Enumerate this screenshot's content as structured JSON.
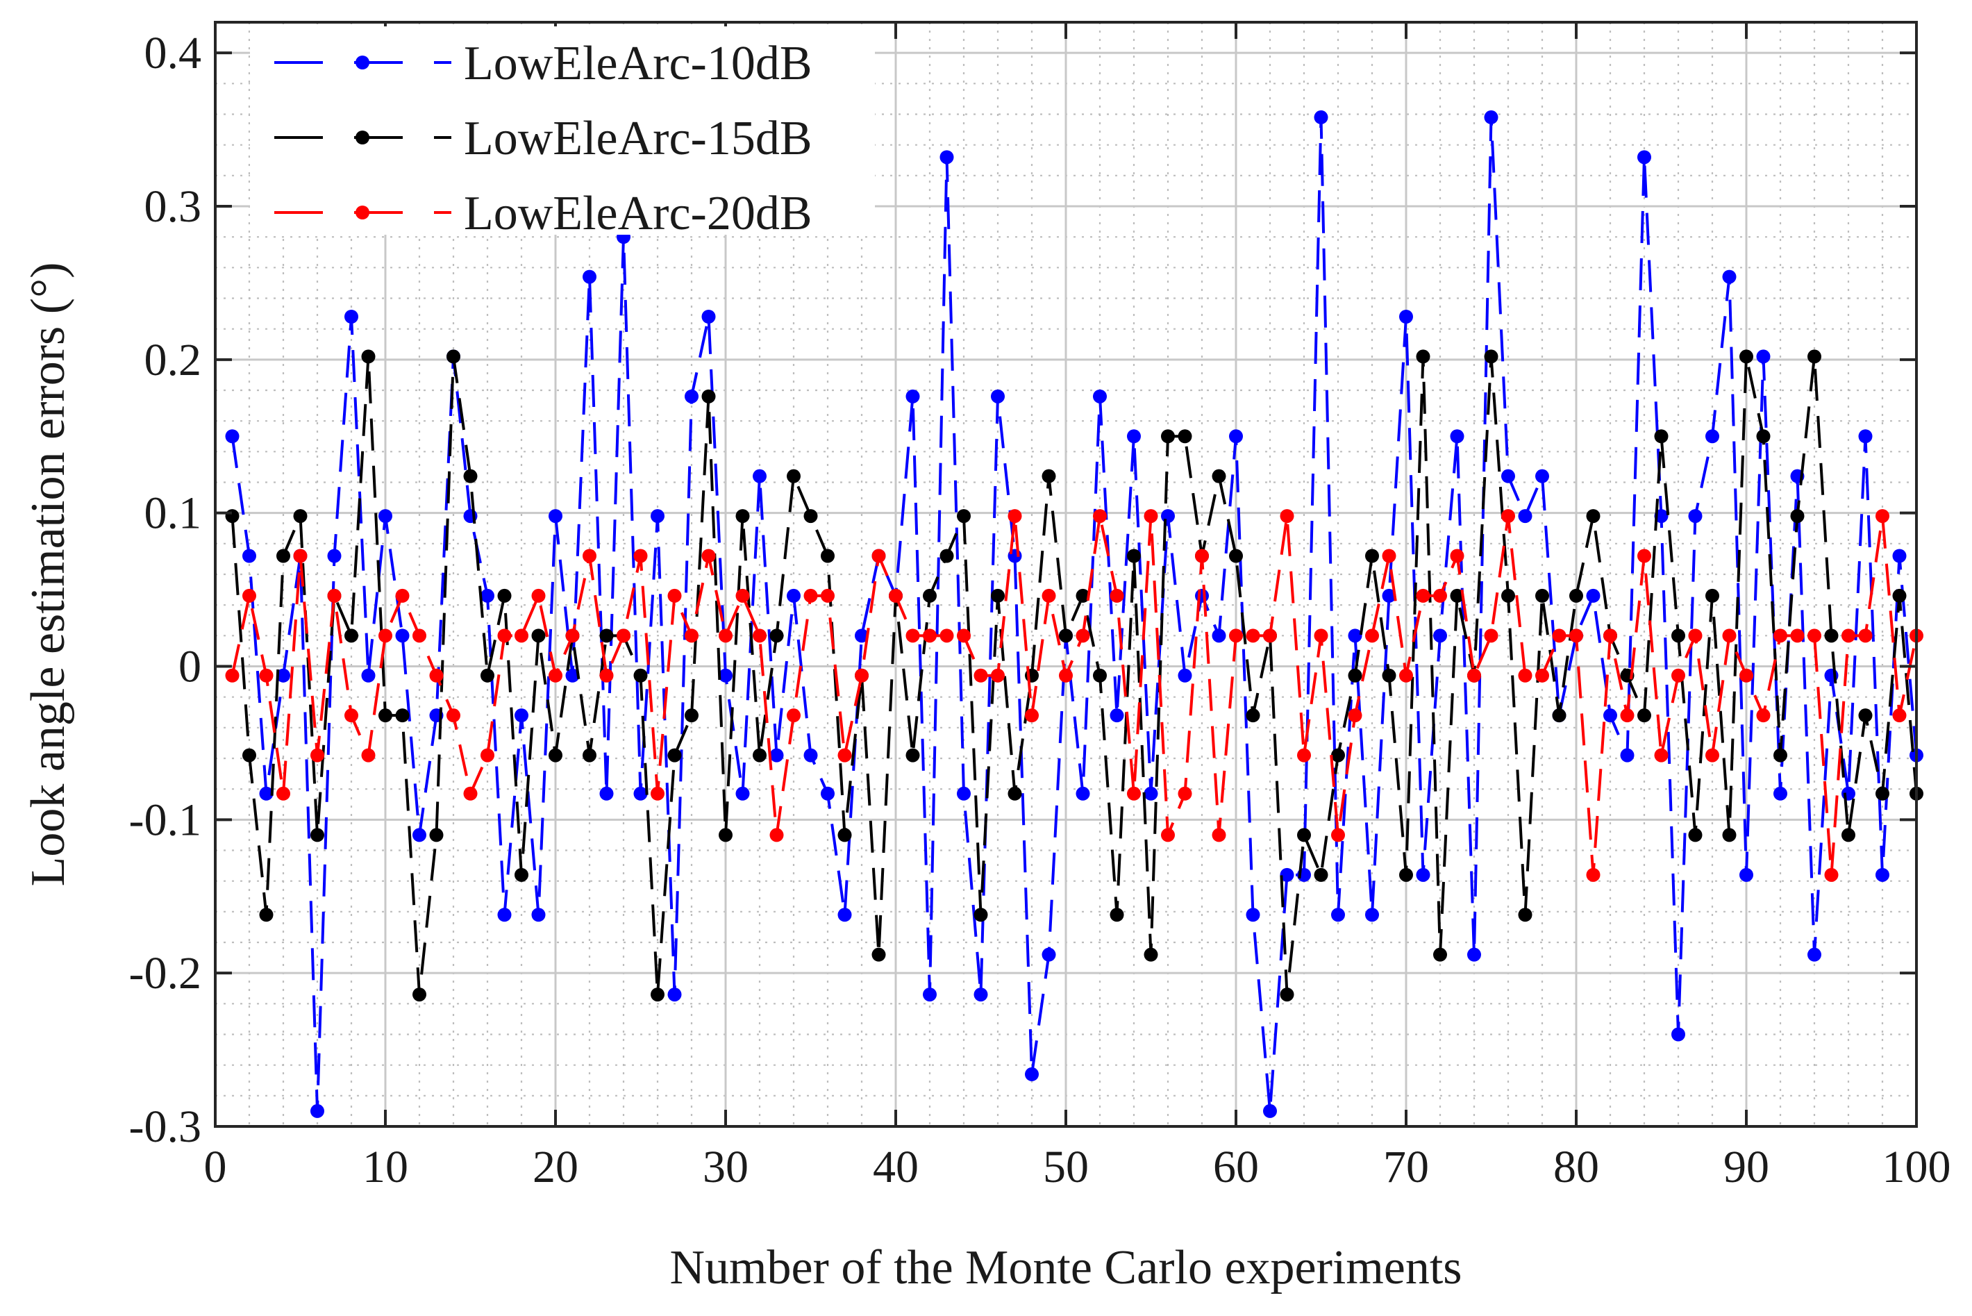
{
  "chart_data": {
    "type": "line",
    "xlabel": "Number of the Monte Carlo experiments",
    "ylabel": "Look angle estimation errors (°)",
    "xlim": [
      0,
      100
    ],
    "ylim": [
      -0.3,
      0.42
    ],
    "xticks": [
      0,
      10,
      20,
      30,
      40,
      50,
      60,
      70,
      80,
      90,
      100
    ],
    "xtick_labels": [
      "0",
      "10",
      "20",
      "30",
      "40",
      "50",
      "60",
      "70",
      "80",
      "90",
      "100"
    ],
    "yticks": [
      -0.3,
      -0.2,
      -0.1,
      0,
      0.1,
      0.2,
      0.3,
      0.4
    ],
    "ytick_labels": [
      "-0.3",
      "-0.2",
      "-0.1",
      "0",
      "0.1",
      "0.2",
      "0.3",
      "0.4"
    ],
    "grid": "on (major and dotted minor)",
    "legend_position": "top-left",
    "x": [
      1,
      2,
      3,
      4,
      5,
      6,
      7,
      8,
      9,
      10,
      11,
      12,
      13,
      14,
      15,
      16,
      17,
      18,
      19,
      20,
      21,
      22,
      23,
      24,
      25,
      26,
      27,
      28,
      29,
      30,
      31,
      32,
      33,
      34,
      35,
      36,
      37,
      38,
      39,
      40,
      41,
      42,
      43,
      44,
      45,
      46,
      47,
      48,
      49,
      50,
      51,
      52,
      53,
      54,
      55,
      56,
      57,
      58,
      59,
      60,
      61,
      62,
      63,
      64,
      65,
      66,
      67,
      68,
      69,
      70,
      71,
      72,
      73,
      74,
      75,
      76,
      77,
      78,
      79,
      80,
      81,
      82,
      83,
      84,
      85,
      86,
      87,
      88,
      89,
      90,
      91,
      92,
      93,
      94,
      95,
      96,
      97,
      98,
      99,
      100
    ],
    "series": [
      {
        "name": "LowEleArc-10dB",
        "color": "#0000ff",
        "values": [
          0.15,
          0.072,
          -0.083,
          -0.006,
          0.072,
          -0.29,
          0.072,
          0.228,
          -0.006,
          0.098,
          0.02,
          -0.11,
          -0.032,
          0.202,
          0.098,
          0.046,
          -0.162,
          -0.032,
          -0.162,
          0.098,
          -0.006,
          0.254,
          -0.083,
          0.28,
          -0.083,
          0.098,
          -0.214,
          0.176,
          0.228,
          -0.006,
          -0.083,
          0.124,
          -0.058,
          0.046,
          -0.058,
          -0.083,
          -0.162,
          0.02,
          0.072,
          0.046,
          0.176,
          -0.214,
          0.332,
          -0.083,
          -0.214,
          0.176,
          0.072,
          -0.266,
          -0.188,
          0.02,
          -0.083,
          0.176,
          -0.032,
          0.15,
          -0.083,
          0.098,
          -0.006,
          0.046,
          0.02,
          0.15,
          -0.162,
          -0.29,
          -0.136,
          -0.136,
          0.358,
          -0.162,
          0.02,
          -0.162,
          0.046,
          0.228,
          -0.136,
          0.02,
          0.15,
          -0.188,
          0.358,
          0.124,
          0.098,
          0.124,
          -0.032,
          0.02,
          0.046,
          -0.032,
          -0.058,
          0.332,
          0.098,
          -0.24,
          0.098,
          0.15,
          0.254,
          -0.136,
          0.202,
          -0.083,
          0.124,
          -0.188,
          -0.006,
          -0.083,
          0.15,
          -0.136,
          0.072,
          -0.058
        ]
      },
      {
        "name": "LowEleArc-15dB",
        "color": "#000000",
        "values": [
          0.098,
          -0.058,
          -0.162,
          0.072,
          0.098,
          -0.11,
          0.046,
          0.02,
          0.202,
          -0.032,
          -0.032,
          -0.214,
          -0.11,
          0.202,
          0.124,
          -0.006,
          0.046,
          -0.136,
          0.02,
          -0.058,
          0.02,
          -0.058,
          0.02,
          0.02,
          -0.006,
          -0.214,
          -0.058,
          -0.032,
          0.176,
          -0.11,
          0.098,
          -0.058,
          0.02,
          0.124,
          0.098,
          0.072,
          -0.11,
          -0.006,
          -0.188,
          0.046,
          -0.058,
          0.046,
          0.072,
          0.098,
          -0.162,
          0.046,
          -0.083,
          -0.006,
          0.124,
          0.02,
          0.046,
          -0.006,
          -0.162,
          0.072,
          -0.188,
          0.15,
          0.15,
          0.072,
          0.124,
          0.072,
          -0.032,
          0.02,
          -0.214,
          -0.11,
          -0.136,
          -0.058,
          -0.006,
          0.072,
          -0.006,
          -0.136,
          0.202,
          -0.188,
          0.046,
          -0.006,
          0.202,
          0.046,
          -0.162,
          0.046,
          -0.032,
          0.046,
          0.098,
          0.02,
          -0.006,
          -0.032,
          0.15,
          0.02,
          -0.11,
          0.046,
          -0.11,
          0.202,
          0.15,
          -0.058,
          0.098,
          0.202,
          0.02,
          -0.11,
          -0.032,
          -0.083,
          0.046,
          -0.083
        ]
      },
      {
        "name": "LowEleArc-20dB",
        "color": "#ff0000",
        "values": [
          -0.006,
          0.046,
          -0.006,
          -0.083,
          0.072,
          -0.058,
          0.046,
          -0.032,
          -0.058,
          0.02,
          0.046,
          0.02,
          -0.006,
          -0.032,
          -0.083,
          -0.058,
          0.02,
          0.02,
          0.046,
          -0.006,
          0.02,
          0.072,
          -0.006,
          0.02,
          0.072,
          -0.083,
          0.046,
          0.02,
          0.072,
          0.02,
          0.046,
          0.02,
          -0.11,
          -0.032,
          0.046,
          0.046,
          -0.058,
          -0.006,
          0.072,
          0.046,
          0.02,
          0.02,
          0.02,
          0.02,
          -0.006,
          -0.006,
          0.098,
          -0.032,
          0.046,
          -0.006,
          0.02,
          0.098,
          0.046,
          -0.083,
          0.098,
          -0.11,
          -0.083,
          0.072,
          -0.11,
          0.02,
          0.02,
          0.02,
          0.098,
          -0.058,
          0.02,
          -0.11,
          -0.032,
          0.02,
          0.072,
          -0.006,
          0.046,
          0.046,
          0.072,
          -0.006,
          0.02,
          0.098,
          -0.006,
          -0.006,
          0.02,
          0.02,
          -0.136,
          0.02,
          -0.032,
          0.072,
          -0.058,
          -0.006,
          0.02,
          -0.058,
          0.02,
          -0.006,
          -0.032,
          0.02,
          0.02,
          0.02,
          -0.136,
          0.02,
          0.02,
          0.098,
          -0.032,
          0.02
        ]
      }
    ]
  }
}
